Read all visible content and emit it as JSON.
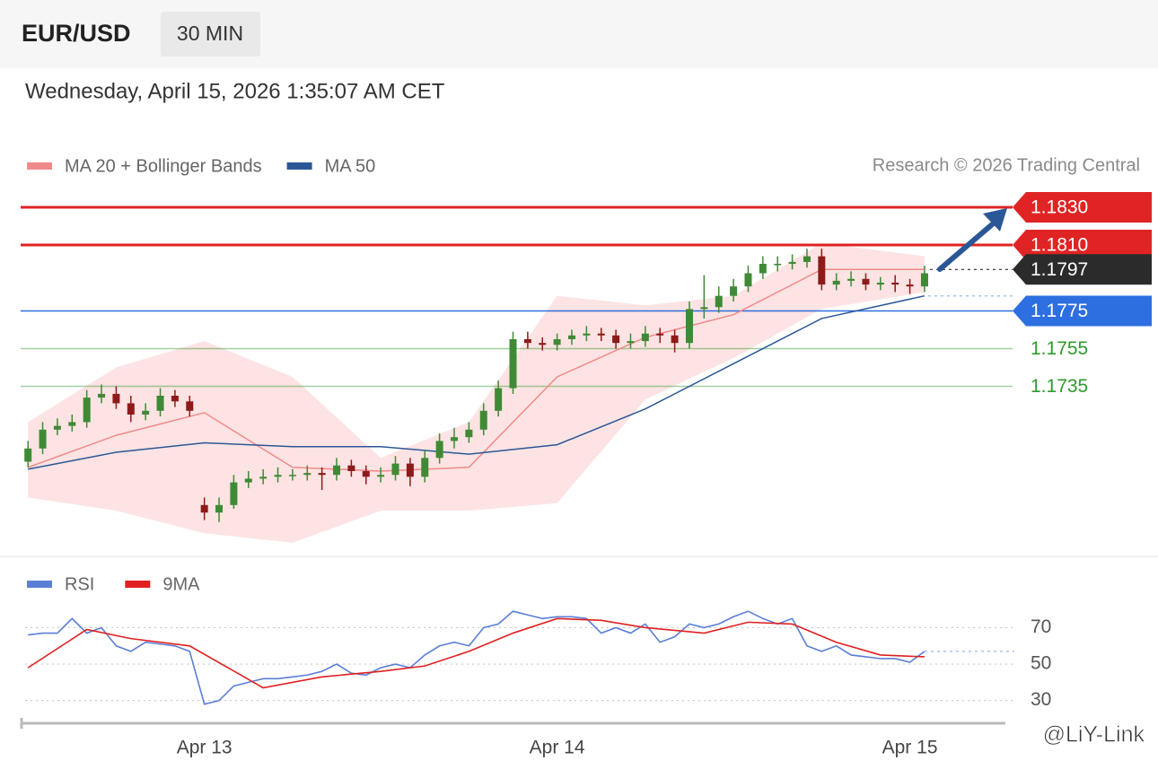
{
  "header": {
    "symbol": "EUR/USD",
    "interval": "30 MIN",
    "timestamp": "Wednesday, April 15, 2026 1:35:07 AM CET"
  },
  "watermark": "@LiY-Link",
  "chart_data": [
    {
      "type": "candlestick",
      "credit": "Research © 2026 Trading Central",
      "xlim": [
        -12.5,
        54.5
      ],
      "ylim": [
        1.165,
        1.1845
      ],
      "up_color": "#3f8a35",
      "down_color": "#8e1b1b",
      "x": [
        -12,
        -11,
        -10,
        -9,
        -8,
        -7,
        -6,
        -5,
        -4,
        -3,
        -2,
        -1,
        0,
        1,
        2,
        3,
        4,
        5,
        6,
        7,
        8,
        9,
        10,
        11,
        12,
        13,
        14,
        15,
        16,
        17,
        18,
        19,
        20,
        21,
        22,
        23,
        24,
        25,
        26,
        27,
        28,
        29,
        30,
        31,
        32,
        33,
        34,
        35,
        36,
        37,
        38,
        39,
        40,
        41,
        42,
        43,
        44,
        45,
        46,
        47,
        48,
        49
      ],
      "open": [
        1.1695,
        1.1702,
        1.1712,
        1.1714,
        1.1716,
        1.1729,
        1.1731,
        1.1726,
        1.172,
        1.1722,
        1.173,
        1.1727,
        1.1672,
        1.1668,
        1.1672,
        1.1684,
        1.1686,
        1.1687,
        1.1688,
        1.1688,
        1.1689,
        1.1688,
        1.1693,
        1.169,
        1.1687,
        1.1688,
        1.1694,
        1.1687,
        1.1697,
        1.1706,
        1.1708,
        1.1712,
        1.1722,
        1.1734,
        1.176,
        1.1758,
        1.1757,
        1.176,
        1.1762,
        1.1763,
        1.1762,
        1.1758,
        1.1759,
        1.1763,
        1.1762,
        1.1758,
        1.1776,
        1.1777,
        1.1783,
        1.1788,
        1.1795,
        1.18,
        1.18,
        1.1801,
        1.1804,
        1.1789,
        1.1791,
        1.1792,
        1.1789,
        1.179,
        1.1789,
        1.1788
      ],
      "high": [
        1.1706,
        1.1716,
        1.1718,
        1.172,
        1.1733,
        1.1736,
        1.1735,
        1.173,
        1.1726,
        1.1734,
        1.1733,
        1.173,
        1.1676,
        1.1676,
        1.1688,
        1.169,
        1.1691,
        1.1692,
        1.1691,
        1.1693,
        1.1692,
        1.1697,
        1.1696,
        1.1693,
        1.1692,
        1.1698,
        1.1697,
        1.1701,
        1.171,
        1.1713,
        1.1716,
        1.1726,
        1.1738,
        1.1764,
        1.1764,
        1.1761,
        1.1763,
        1.1765,
        1.1767,
        1.1766,
        1.1765,
        1.1763,
        1.1767,
        1.1766,
        1.1765,
        1.178,
        1.1794,
        1.1788,
        1.1792,
        1.1799,
        1.1804,
        1.1804,
        1.1805,
        1.1808,
        1.1808,
        1.1795,
        1.1796,
        1.1795,
        1.1793,
        1.1794,
        1.1792,
        1.1799
      ],
      "low": [
        1.1692,
        1.1699,
        1.1709,
        1.1711,
        1.1713,
        1.1726,
        1.1723,
        1.1716,
        1.1717,
        1.1719,
        1.1724,
        1.1719,
        1.1664,
        1.1663,
        1.167,
        1.1681,
        1.1683,
        1.1684,
        1.1685,
        1.1685,
        1.168,
        1.1685,
        1.1687,
        1.1683,
        1.1684,
        1.1685,
        1.1682,
        1.1684,
        1.1694,
        1.1702,
        1.1705,
        1.1709,
        1.1719,
        1.1731,
        1.1755,
        1.1754,
        1.1754,
        1.1757,
        1.1759,
        1.1759,
        1.1755,
        1.1755,
        1.1756,
        1.1758,
        1.1753,
        1.1755,
        1.1771,
        1.1774,
        1.178,
        1.1785,
        1.1792,
        1.1796,
        1.1797,
        1.1798,
        1.1786,
        1.1786,
        1.1788,
        1.1786,
        1.1786,
        1.1785,
        1.1784,
        1.1785
      ],
      "close": [
        1.1702,
        1.1712,
        1.1714,
        1.1716,
        1.1729,
        1.1731,
        1.1726,
        1.172,
        1.1722,
        1.173,
        1.1727,
        1.1722,
        1.1668,
        1.1672,
        1.1684,
        1.1686,
        1.1687,
        1.1688,
        1.1688,
        1.1689,
        1.1688,
        1.1693,
        1.169,
        1.1687,
        1.1688,
        1.1694,
        1.1687,
        1.1697,
        1.1706,
        1.1708,
        1.1712,
        1.1722,
        1.1734,
        1.176,
        1.1758,
        1.1757,
        1.176,
        1.1762,
        1.1763,
        1.1762,
        1.1758,
        1.1759,
        1.1763,
        1.1762,
        1.1758,
        1.1776,
        1.1777,
        1.1783,
        1.1788,
        1.1795,
        1.18,
        1.18,
        1.1801,
        1.1804,
        1.1789,
        1.1791,
        1.1792,
        1.1789,
        1.179,
        1.1789,
        1.1788,
        1.1795
      ],
      "series": [
        {
          "name": "MA 20 + Bollinger Bands",
          "color": "#f08a8a",
          "band_color": "#fde3e3",
          "x": [
            -12,
            -6,
            0,
            6,
            12,
            18,
            24,
            30,
            36,
            42,
            49
          ],
          "values": [
            1.1692,
            1.1709,
            1.1721,
            1.1692,
            1.169,
            1.1692,
            1.174,
            1.1761,
            1.1773,
            1.1797,
            1.1797
          ],
          "upper": [
            1.1716,
            1.1745,
            1.1759,
            1.174,
            1.1697,
            1.1716,
            1.1783,
            1.1778,
            1.1783,
            1.1811,
            1.1804
          ],
          "lower": [
            1.1676,
            1.1669,
            1.1657,
            1.1652,
            1.1669,
            1.1669,
            1.1673,
            1.1728,
            1.175,
            1.1776,
            1.1785
          ]
        },
        {
          "name": "MA 50",
          "color": "#2b5797",
          "x": [
            -12,
            -6,
            0,
            6,
            12,
            18,
            24,
            30,
            36,
            42,
            49
          ],
          "values": [
            1.1691,
            1.17,
            1.1705,
            1.1703,
            1.1703,
            1.1699,
            1.1704,
            1.1723,
            1.1747,
            1.1771,
            1.1783
          ]
        }
      ],
      "levels": [
        {
          "value": 1.183,
          "label": "1.1830",
          "color": "#e02424",
          "style": "tag",
          "line": "solid"
        },
        {
          "value": 1.181,
          "label": "1.1810",
          "color": "#e02424",
          "style": "tag",
          "line": "solid"
        },
        {
          "value": 1.1797,
          "label": "1.1797",
          "color": "#2b2b2b",
          "style": "tag",
          "line": "dotted"
        },
        {
          "value": 1.1775,
          "label": "1.1775",
          "color": "#2d6fe0",
          "style": "tag",
          "line": "solid"
        },
        {
          "value": 1.1755,
          "label": "1.1755",
          "color": "#2e9a2e",
          "style": "text",
          "line": "solid"
        },
        {
          "value": 1.1735,
          "label": "1.1735",
          "color": "#2e9a2e",
          "style": "text",
          "line": "solid"
        }
      ]
    },
    {
      "type": "line",
      "xlim": [
        -12.5,
        54.5
      ],
      "ylim": [
        20,
        85
      ],
      "yticks": [
        30,
        50,
        70
      ],
      "grid": true,
      "xticks": [
        {
          "value": 0,
          "label": "Apr 13"
        },
        {
          "value": 24,
          "label": "Apr 14"
        },
        {
          "value": 48,
          "label": "Apr 15"
        }
      ],
      "series": [
        {
          "name": "RSI",
          "color": "#5b7fd6",
          "x": [
            -12,
            -11,
            -10,
            -9,
            -8,
            -7,
            -6,
            -5,
            -4,
            -3,
            -2,
            -1,
            0,
            1,
            2,
            3,
            4,
            5,
            6,
            7,
            8,
            9,
            10,
            11,
            12,
            13,
            14,
            15,
            16,
            17,
            18,
            19,
            20,
            21,
            22,
            23,
            24,
            25,
            26,
            27,
            28,
            29,
            30,
            31,
            32,
            33,
            34,
            35,
            36,
            37,
            38,
            39,
            40,
            41,
            42,
            43,
            44,
            45,
            46,
            47,
            48,
            49
          ],
          "values": [
            66,
            67,
            67,
            75,
            67,
            70,
            60,
            57,
            62,
            61,
            60,
            57,
            28,
            30,
            38,
            40,
            42,
            42,
            43,
            44,
            46,
            50,
            45,
            44,
            48,
            50,
            48,
            55,
            60,
            62,
            60,
            70,
            72,
            79,
            77,
            75,
            76,
            76,
            75,
            67,
            70,
            67,
            72,
            62,
            65,
            72,
            70,
            72,
            76,
            79,
            75,
            72,
            75,
            60,
            57,
            60,
            55,
            54,
            53,
            53,
            51,
            57
          ]
        },
        {
          "name": "9MA",
          "color": "#e02020",
          "x": [
            -12,
            -8,
            -5,
            -1,
            4,
            8,
            12,
            15,
            18,
            21,
            24,
            27,
            30,
            34,
            37,
            40,
            43,
            46,
            49
          ],
          "values": [
            48,
            69,
            64,
            60,
            37,
            43,
            46,
            49,
            57,
            67,
            75,
            74,
            70,
            67,
            73,
            72,
            62,
            55,
            54
          ]
        }
      ]
    }
  ]
}
